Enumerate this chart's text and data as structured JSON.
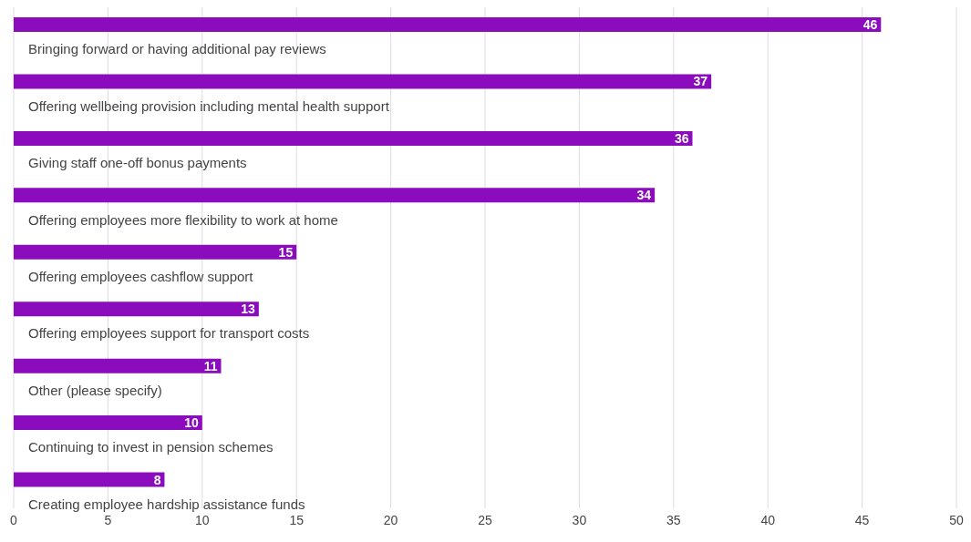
{
  "chart_data": {
    "type": "bar",
    "orientation": "horizontal",
    "categories": [
      "Bringing forward or having additional pay reviews",
      "Offering wellbeing provision including mental health support",
      "Giving staff one-off bonus payments",
      "Offering employees more flexibility to work at home",
      "Offering employees cashflow support",
      "Offering employees support for transport costs",
      "Other (please specify)",
      "Continuing to invest in pension schemes",
      "Creating employee hardship assistance funds"
    ],
    "values": [
      46,
      37,
      36,
      34,
      15,
      13,
      11,
      10,
      8
    ],
    "color": "#8a0cbc",
    "xlim": [
      0,
      50
    ],
    "xticks": [
      0,
      5,
      10,
      15,
      20,
      25,
      30,
      35,
      40,
      45,
      50
    ],
    "grid": "x",
    "data_labels": true
  }
}
